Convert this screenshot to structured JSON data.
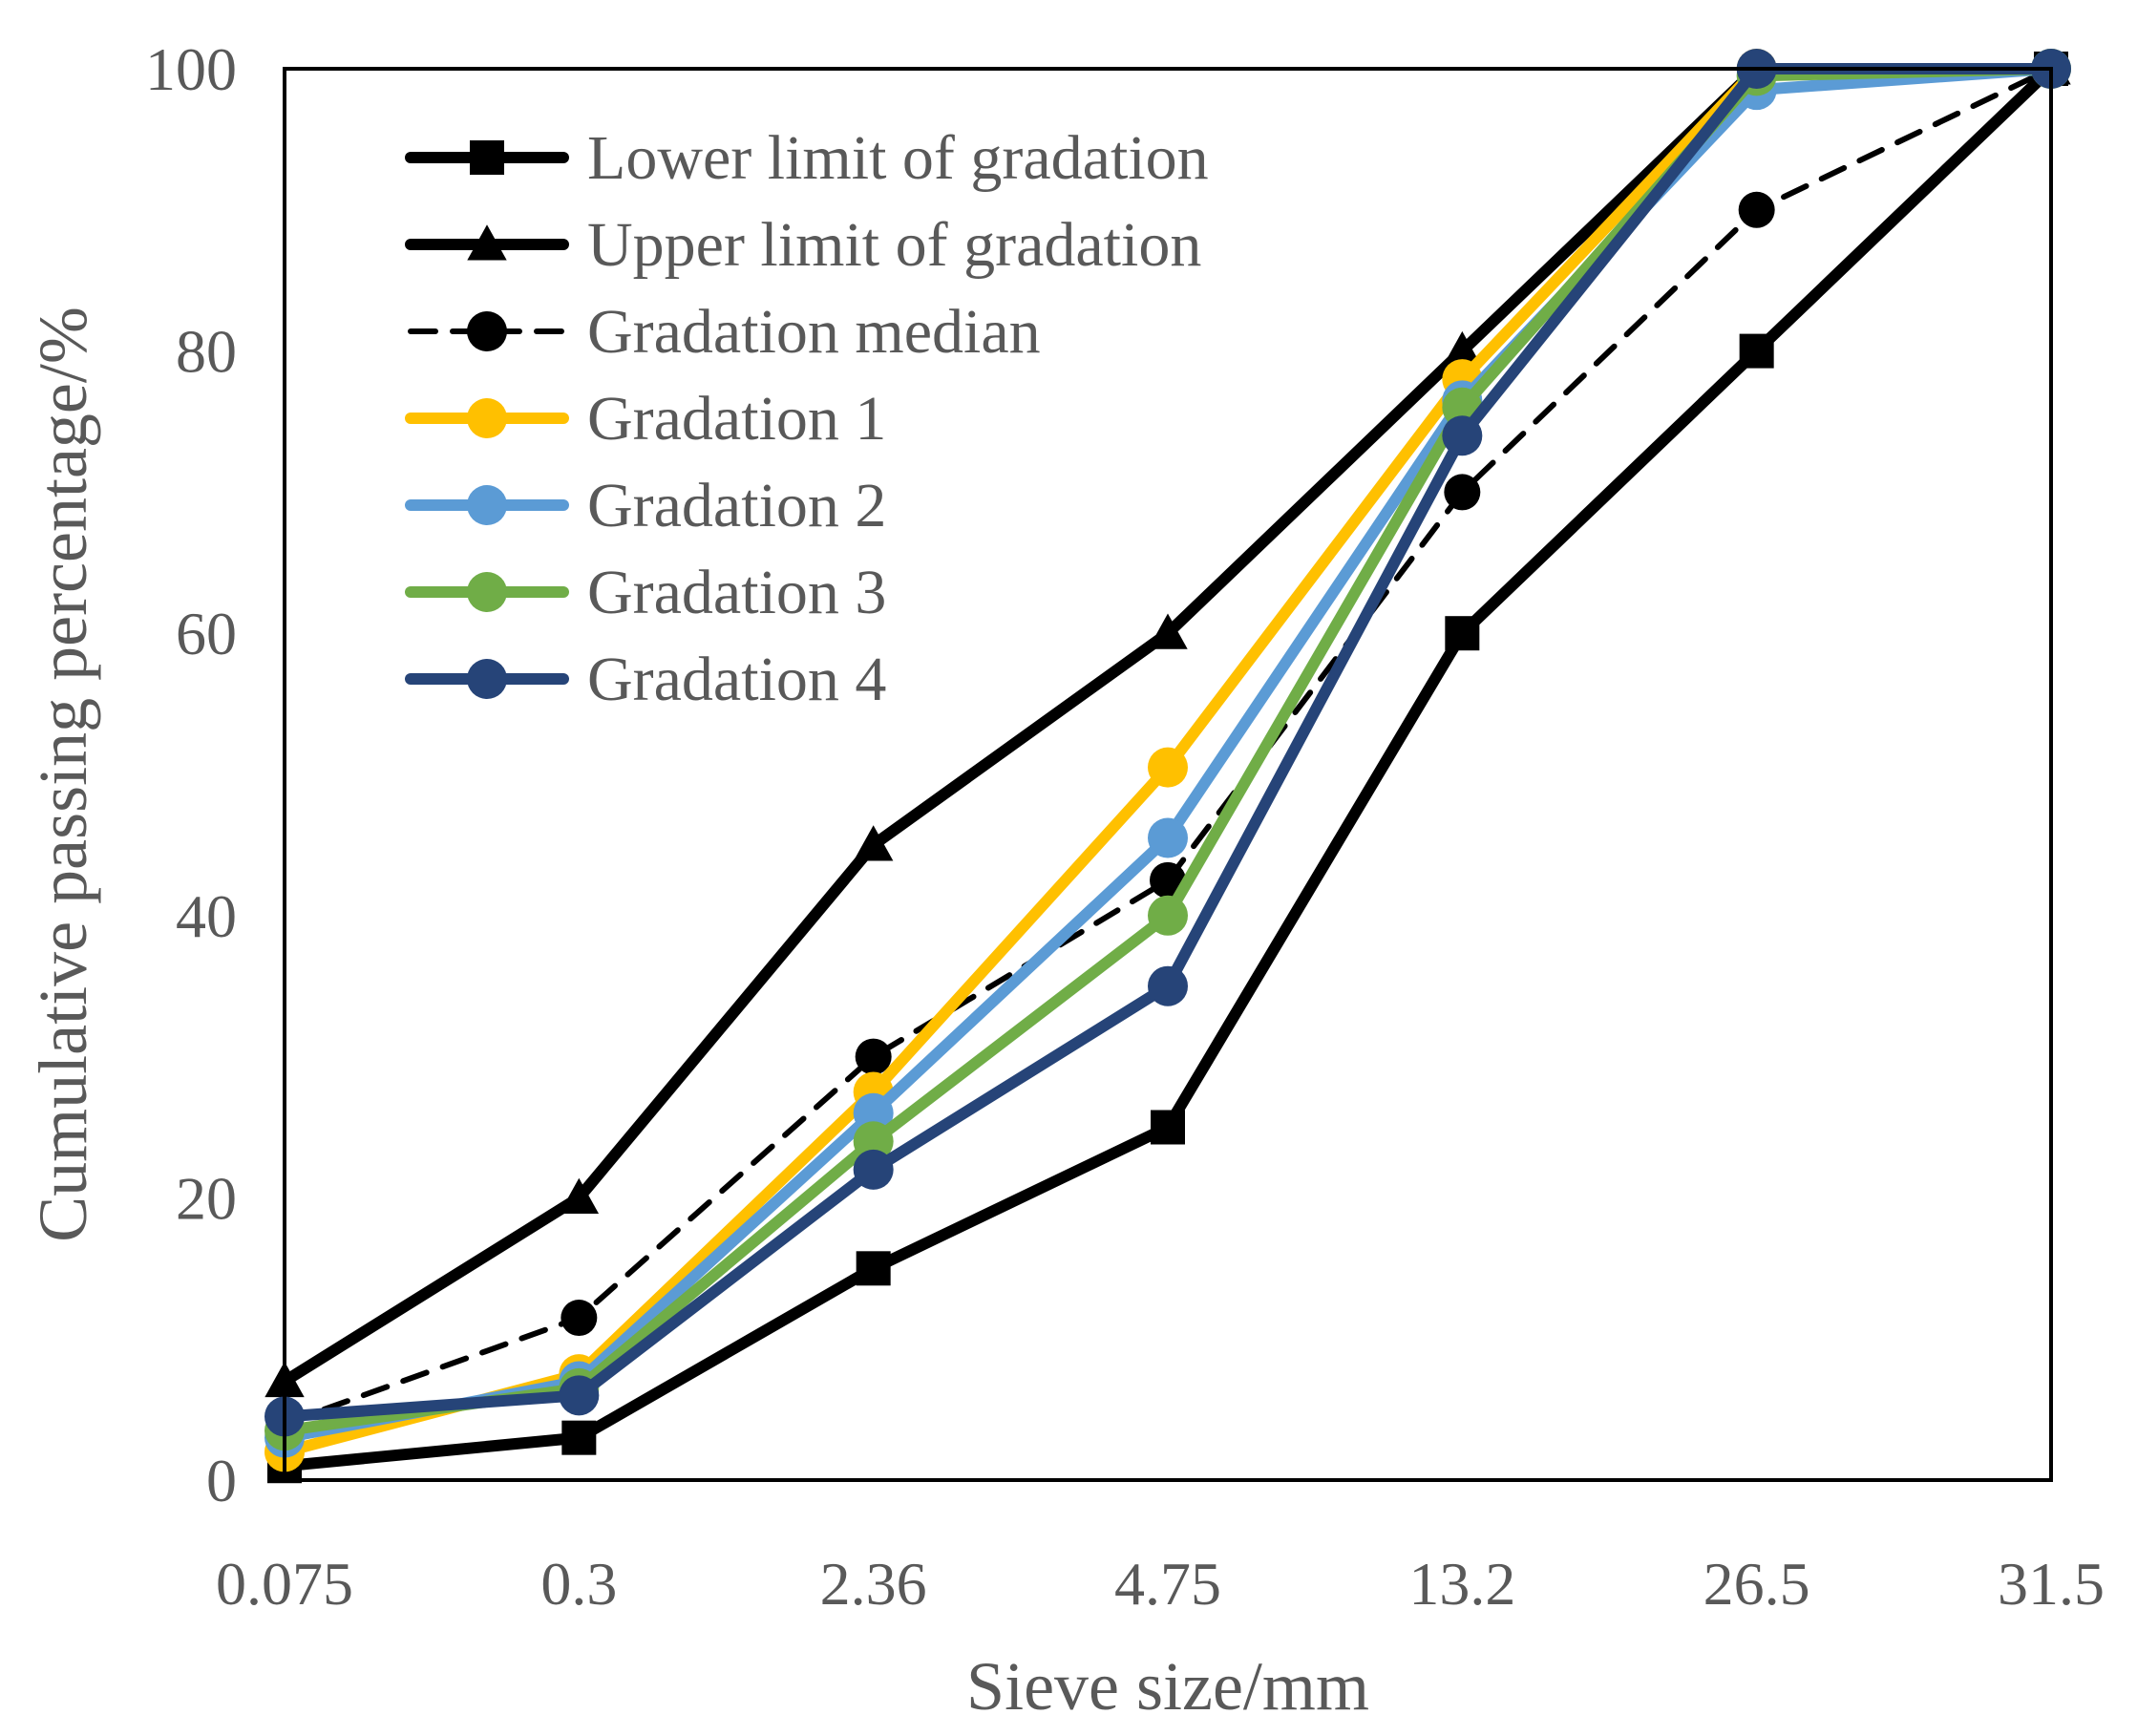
{
  "chart_data": {
    "type": "line",
    "title": "",
    "xlabel": "Sieve size/mm",
    "ylabel": "Cumulative passing percentage/%",
    "categories": [
      "0.075",
      "0.3",
      "2.36",
      "4.75",
      "13.2",
      "26.5",
      "31.5"
    ],
    "ylim": [
      0,
      100
    ],
    "yticks": [
      "0",
      "20",
      "40",
      "60",
      "80",
      "100"
    ],
    "grid": false,
    "legend_position": "top-left",
    "series": [
      {
        "name": "Lower limit of gradation",
        "values": [
          1,
          3,
          15,
          25,
          60,
          80,
          100
        ],
        "color": "#000000",
        "marker": "square",
        "dash": false
      },
      {
        "name": "Upper limit of gradation",
        "values": [
          7,
          20,
          45,
          60,
          80,
          100,
          100
        ],
        "color": "#000000",
        "marker": "triangle",
        "dash": false
      },
      {
        "name": "Gradation median",
        "values": [
          4,
          11.5,
          30,
          42.5,
          70,
          90,
          100
        ],
        "color": "#000000",
        "marker": "circle",
        "dash": true
      },
      {
        "name": "Gradation 1",
        "values": [
          2,
          7.5,
          27.5,
          50.5,
          78,
          100,
          100
        ],
        "color": "#FFC000",
        "marker": "circle",
        "dash": false
      },
      {
        "name": "Gradation 2",
        "values": [
          3,
          7,
          26,
          45.5,
          76.5,
          98.5,
          100
        ],
        "color": "#5B9BD5",
        "marker": "circle",
        "dash": false
      },
      {
        "name": "Gradation 3",
        "values": [
          3.5,
          6.5,
          24,
          40,
          76,
          99.5,
          100
        ],
        "color": "#70AD47",
        "marker": "circle",
        "dash": false
      },
      {
        "name": "Gradation 4",
        "values": [
          4.5,
          6,
          22,
          35,
          74,
          100,
          100
        ],
        "color": "#264478",
        "marker": "circle",
        "dash": false
      }
    ]
  }
}
